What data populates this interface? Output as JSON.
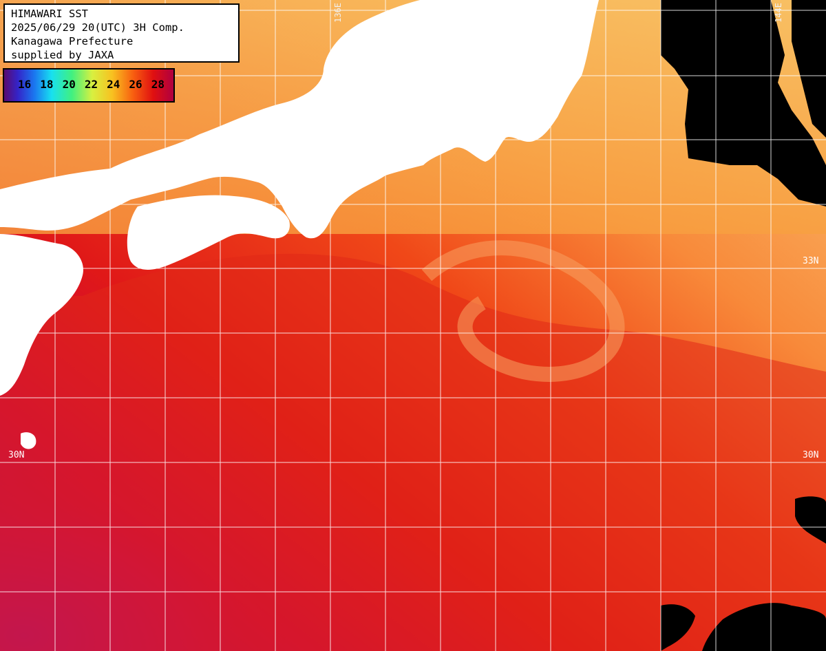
{
  "header": {
    "line1": "HIMAWARI SST",
    "line2": "2025/06/29 20(UTC) 3H Comp.",
    "line3": "Kanagawa Prefecture",
    "line4": "supplied by JAXA"
  },
  "legend": {
    "ticks": [
      "16",
      "18",
      "20",
      "22",
      "24",
      "26",
      "28"
    ]
  },
  "labels": {
    "lat_33_left": "33",
    "lat_33_right": "33N",
    "lat_30_left": "30N",
    "lat_30_right": "30N",
    "lon_136": "136E",
    "lon_144": "144E"
  },
  "colors": {
    "land": "#ffffff",
    "no_data": "#000000",
    "grid": "#ffffff"
  }
}
